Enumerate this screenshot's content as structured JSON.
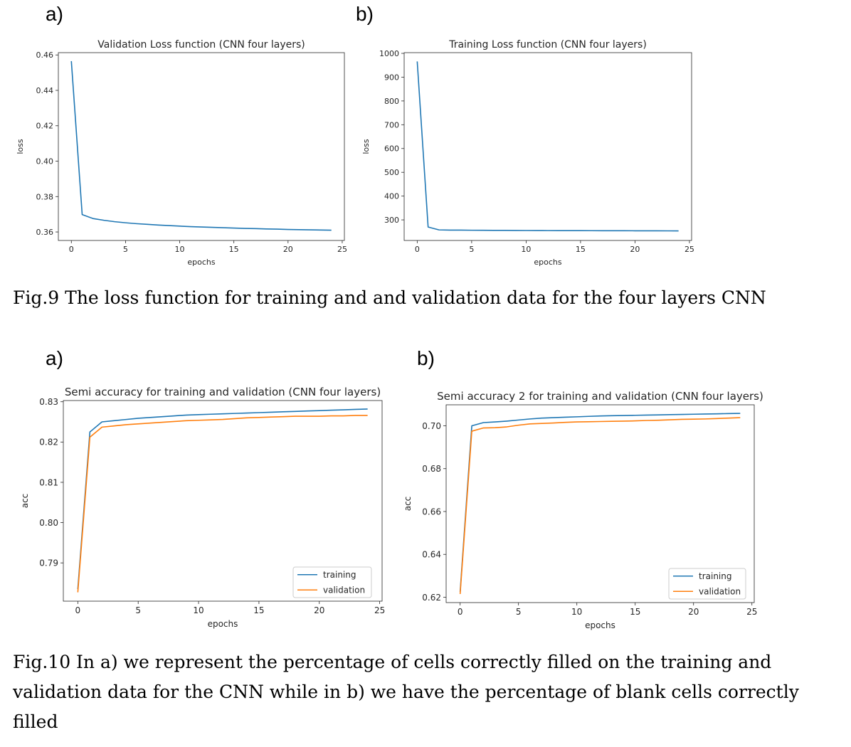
{
  "figure9": {
    "panel_a_label": "a)",
    "panel_b_label": "b)",
    "caption": "Fig.9 The loss function for training and and validation data for the four layers CNN"
  },
  "figure10": {
    "panel_a_label": "a)",
    "panel_b_label": "b)",
    "caption_line1": "Fig.10  In a) we represent  the percentage of cells correctly filled on the training and",
    "caption_line2": "validation data for the CNN while in b) we have the percentage of blank cells correctly",
    "caption_line3": "filled"
  },
  "colors": {
    "training": "#1f77b4",
    "validation": "#ff7f0e",
    "axis": "#262626"
  },
  "chart_data": [
    {
      "type": "line",
      "title": "Validation Loss function (CNN four layers)",
      "xlabel": "epochs",
      "ylabel": "loss",
      "xlim": [
        -1.2,
        25.2
      ],
      "ylim": [
        0.3552,
        0.4613
      ],
      "xticks": [
        0,
        5,
        10,
        15,
        20,
        25
      ],
      "yticks": [
        0.36,
        0.38,
        0.4,
        0.42,
        0.44,
        0.46
      ],
      "ytick_labels": [
        "0.36",
        "0.38",
        "0.40",
        "0.42",
        "0.44",
        "0.46"
      ],
      "grid": false,
      "legend": null,
      "x": [
        0,
        1,
        2,
        3,
        4,
        5,
        6,
        7,
        8,
        9,
        10,
        11,
        12,
        13,
        14,
        15,
        16,
        17,
        18,
        19,
        20,
        21,
        22,
        23,
        24
      ],
      "series": [
        {
          "values": [
            0.4565,
            0.3698,
            0.3676,
            0.3666,
            0.3658,
            0.3652,
            0.3647,
            0.3643,
            0.3639,
            0.3636,
            0.3633,
            0.363,
            0.3628,
            0.3626,
            0.3624,
            0.3622,
            0.362,
            0.3619,
            0.3617,
            0.3616,
            0.3614,
            0.3613,
            0.3612,
            0.3611,
            0.361
          ],
          "color": "#1f77b4"
        }
      ]
    },
    {
      "type": "line",
      "title": "Training Loss function (CNN four layers)",
      "xlabel": "epochs",
      "ylabel": "loss",
      "xlim": [
        -1.2,
        25.2
      ],
      "ylim": [
        213.5,
        1003
      ],
      "xticks": [
        0,
        5,
        10,
        15,
        20,
        25
      ],
      "yticks": [
        300,
        400,
        500,
        600,
        700,
        800,
        900,
        1000
      ],
      "ytick_labels": [
        "300",
        "400",
        "500",
        "600",
        "700",
        "800",
        "900",
        "1000"
      ],
      "grid": false,
      "legend": null,
      "x": [
        0,
        1,
        2,
        3,
        4,
        5,
        6,
        7,
        8,
        9,
        10,
        11,
        12,
        13,
        14,
        15,
        16,
        17,
        18,
        19,
        20,
        21,
        22,
        23,
        24
      ],
      "series": [
        {
          "values": [
            966,
            270,
            258,
            257,
            257,
            256.5,
            256.3,
            256,
            255.8,
            255.6,
            255.4,
            255.2,
            255,
            254.9,
            254.8,
            254.7,
            254.6,
            254.5,
            254.4,
            254.3,
            254.2,
            254.1,
            254,
            253.9,
            253.8
          ],
          "color": "#1f77b4"
        }
      ]
    },
    {
      "type": "line",
      "title": "Semi accuracy for training and validation (CNN four layers)",
      "xlabel": "epochs",
      "ylabel": "acc",
      "xlim": [
        -1.2,
        25.2
      ],
      "ylim": [
        0.7805,
        0.8303
      ],
      "xticks": [
        0,
        5,
        10,
        15,
        20,
        25
      ],
      "yticks": [
        0.79,
        0.8,
        0.81,
        0.82,
        0.83
      ],
      "ytick_labels": [
        "0.79",
        "0.80",
        "0.81",
        "0.82",
        "0.83"
      ],
      "grid": false,
      "legend": "lower right",
      "x": [
        0,
        1,
        2,
        3,
        4,
        5,
        6,
        7,
        8,
        9,
        10,
        11,
        12,
        13,
        14,
        15,
        16,
        17,
        18,
        19,
        20,
        21,
        22,
        23,
        24
      ],
      "series": [
        {
          "name": "training",
          "color": "#1f77b4",
          "values": [
            0.7835,
            0.8225,
            0.825,
            0.8253,
            0.8256,
            0.8259,
            0.8261,
            0.8263,
            0.8265,
            0.8267,
            0.8268,
            0.8269,
            0.827,
            0.8271,
            0.8272,
            0.8273,
            0.8274,
            0.8275,
            0.8276,
            0.8277,
            0.8278,
            0.8279,
            0.828,
            0.8281,
            0.8282
          ]
        },
        {
          "name": "validation",
          "color": "#ff7f0e",
          "values": [
            0.7827,
            0.8212,
            0.8237,
            0.824,
            0.8243,
            0.8245,
            0.8247,
            0.8249,
            0.8251,
            0.8253,
            0.8254,
            0.8255,
            0.8256,
            0.8258,
            0.826,
            0.8261,
            0.8262,
            0.8263,
            0.8264,
            0.8264,
            0.8264,
            0.8265,
            0.8265,
            0.8266,
            0.8266
          ]
        }
      ]
    },
    {
      "type": "line",
      "title": "Semi accuracy 2 for training and validation (CNN four layers)",
      "xlabel": "epochs",
      "ylabel": "acc",
      "xlim": [
        -1.2,
        25.2
      ],
      "ylim": [
        0.6175,
        0.7098
      ],
      "xticks": [
        0,
        5,
        10,
        15,
        20,
        25
      ],
      "yticks": [
        0.62,
        0.64,
        0.66,
        0.68,
        0.7
      ],
      "ytick_labels": [
        "0.62",
        "0.64",
        "0.66",
        "0.68",
        "0.70"
      ],
      "grid": false,
      "legend": "lower right",
      "x": [
        0,
        1,
        2,
        3,
        4,
        5,
        6,
        7,
        8,
        9,
        10,
        11,
        12,
        13,
        14,
        15,
        16,
        17,
        18,
        19,
        20,
        21,
        22,
        23,
        24
      ],
      "series": [
        {
          "name": "training",
          "color": "#1f77b4",
          "values": [
            0.6225,
            0.7,
            0.7015,
            0.7018,
            0.7022,
            0.7027,
            0.7032,
            0.7036,
            0.7038,
            0.704,
            0.7042,
            0.7044,
            0.7046,
            0.7047,
            0.7048,
            0.7049,
            0.705,
            0.7051,
            0.7052,
            0.7053,
            0.7054,
            0.7055,
            0.7056,
            0.7057,
            0.7058
          ]
        },
        {
          "name": "validation",
          "color": "#ff7f0e",
          "values": [
            0.6215,
            0.6975,
            0.699,
            0.6991,
            0.6995,
            0.7003,
            0.7009,
            0.7011,
            0.7013,
            0.7016,
            0.7018,
            0.7019,
            0.702,
            0.7021,
            0.7022,
            0.7023,
            0.7025,
            0.7026,
            0.7028,
            0.703,
            0.7031,
            0.7032,
            0.7034,
            0.7036,
            0.7038
          ]
        }
      ]
    }
  ]
}
